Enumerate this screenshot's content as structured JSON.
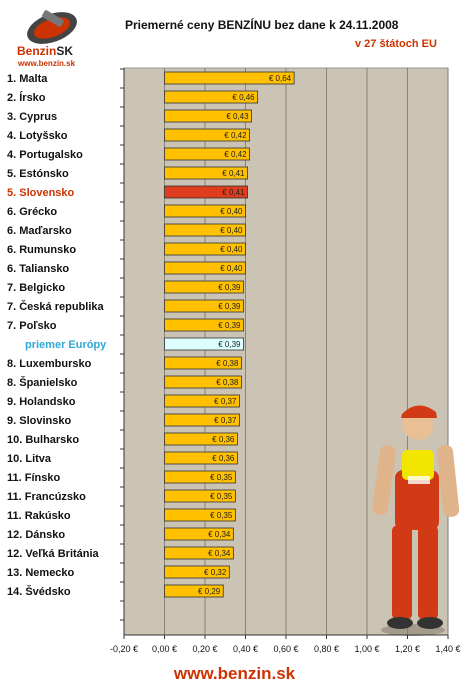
{
  "header": {
    "title": "Priemerné ceny BENZÍNU bez dane k 24.11.2008",
    "subtitle": "v 27 štátoch EU",
    "logo_brand": "Benzin",
    "logo_brand_sk": "SK",
    "logo_url": "www.benzin.sk"
  },
  "footer": {
    "url": "www.benzin.sk"
  },
  "colors": {
    "plot_background": "#cbc3b3",
    "bar_default": "#ffc000",
    "bar_highlight": "#e03c1e",
    "bar_average": "#ddffff",
    "label_highlight": "#cc3300",
    "label_average": "#2fa8d8",
    "accent": "#cc3300"
  },
  "chart_data": {
    "type": "bar",
    "orientation": "horizontal",
    "title": "Priemerné ceny BENZÍNU bez dane k 24.11.2008",
    "subtitle": "v 27 štátoch EU",
    "xlim": [
      -0.2,
      1.4
    ],
    "xticks": [
      "-0,20 €",
      "0,00 €",
      "0,20 €",
      "0,40 €",
      "0,60 €",
      "0,80 €",
      "1,00 €",
      "1,20 €",
      "1,40 €"
    ],
    "grid": "vertical",
    "categories": [
      "1. Malta",
      "2. Írsko",
      "3. Cyprus",
      "4. Lotyšsko",
      "4. Portugalsko",
      "5. Estónsko",
      "5. Slovensko",
      "6. Grécko",
      "6. Maďarsko",
      "6. Rumunsko",
      "6. Taliansko",
      "7. Belgicko",
      "7. Česká republika",
      "7. Poľsko",
      "priemer Európy",
      "8. Luxembursko",
      "8. Španielsko",
      "9. Holandsko",
      "9. Slovinsko",
      "10. Bulharsko",
      "10. Litva",
      "11. Fínsko",
      "11. Francúzsko",
      "11. Rakúsko",
      "12. Dánsko",
      "12. Veľká Británia",
      "13. Nemecko",
      "14. Švédsko"
    ],
    "values": [
      0.64,
      0.46,
      0.43,
      0.42,
      0.42,
      0.41,
      0.41,
      0.4,
      0.4,
      0.4,
      0.4,
      0.39,
      0.39,
      0.39,
      0.39,
      0.38,
      0.38,
      0.37,
      0.37,
      0.36,
      0.36,
      0.35,
      0.35,
      0.35,
      0.34,
      0.34,
      0.32,
      0.29
    ],
    "value_labels": [
      "€ 0,64",
      "€ 0,46",
      "€ 0,43",
      "€ 0,42",
      "€ 0,42",
      "€ 0,41",
      "€ 0,41",
      "€ 0,40",
      "€ 0,40",
      "€ 0,40",
      "€ 0,40",
      "€ 0,39",
      "€ 0,39",
      "€ 0,39",
      "€ 0,39",
      "€ 0,38",
      "€ 0,38",
      "€ 0,37",
      "€ 0,37",
      "€ 0,36",
      "€ 0,36",
      "€ 0,35",
      "€ 0,35",
      "€ 0,35",
      "€ 0,34",
      "€ 0,34",
      "€ 0,32",
      "€ 0,29"
    ],
    "highlight": "5. Slovensko",
    "average": "priemer Európy"
  }
}
